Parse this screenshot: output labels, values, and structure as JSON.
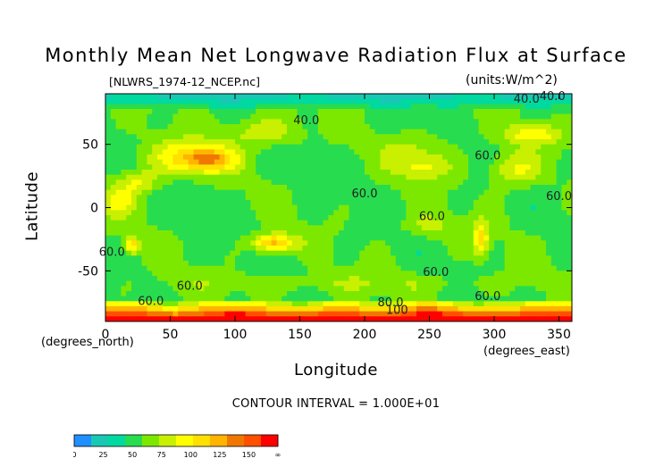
{
  "chart_data": {
    "type": "heatmap",
    "title": "Monthly Mean Net Longwave Radiation Flux at Surface",
    "file_label": "[NLWRS_1974-12_NCEP.nc]",
    "units_label": "(units:W/m^2)",
    "xlabel": "Longitude",
    "ylabel": "Latitude",
    "x_unit_label": "(degrees_east)",
    "y_unit_label": "(degrees_north)",
    "xlim": [
      0,
      360
    ],
    "ylim": [
      -90,
      90
    ],
    "x_ticks": [
      0,
      50,
      100,
      150,
      200,
      250,
      300,
      350
    ],
    "y_ticks": [
      50,
      0,
      -50
    ],
    "contour_interval_text": "CONTOUR INTERVAL = 1.000E+01",
    "contour_labels": [
      {
        "text": "40.0",
        "lon": 155,
        "lat": 66
      },
      {
        "text": "40.0",
        "lon": 325,
        "lat": 83
      },
      {
        "text": "40.0",
        "lon": 345,
        "lat": 85
      },
      {
        "text": "60.0",
        "lon": 295,
        "lat": 38
      },
      {
        "text": "60.0",
        "lon": 200,
        "lat": 8
      },
      {
        "text": "60.0",
        "lon": 350,
        "lat": 6
      },
      {
        "text": "60.0",
        "lon": 252,
        "lat": -10
      },
      {
        "text": "60.0",
        "lon": 5,
        "lat": -38
      },
      {
        "text": "60.0",
        "lon": 255,
        "lat": -54
      },
      {
        "text": "60.0",
        "lon": 65,
        "lat": -65
      },
      {
        "text": "60.0",
        "lon": 295,
        "lat": -73
      },
      {
        "text": "60.0",
        "lon": 35,
        "lat": -77
      },
      {
        "text": "80.0",
        "lon": 220,
        "lat": -78
      },
      {
        "text": "100",
        "lon": 225,
        "lat": -84
      }
    ],
    "colorbar": {
      "ticks": [
        "0",
        "25",
        "50",
        "75",
        "100",
        "125",
        "150",
        "∞"
      ],
      "colors": [
        "#1E90FF",
        "#19C8B4",
        "#00D9A0",
        "#28DC50",
        "#7CE800",
        "#C8F000",
        "#FFFF00",
        "#FFE000",
        "#FFB400",
        "#F07800",
        "#FF5000",
        "#FF0000"
      ]
    }
  }
}
